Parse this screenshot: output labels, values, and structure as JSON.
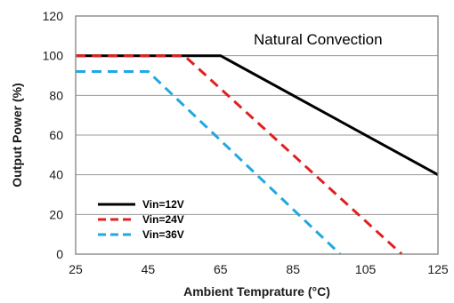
{
  "chart_data": {
    "type": "line",
    "annotation": "Natural Convection",
    "xlabel": "Ambient Temprature (°C)",
    "ylabel": "Output Power (%)",
    "xlim": [
      25,
      125
    ],
    "ylim": [
      0,
      120
    ],
    "x_ticks": [
      "25",
      "45",
      "65",
      "85",
      "105",
      "125"
    ],
    "y_ticks": [
      "0",
      "20",
      "40",
      "60",
      "80",
      "100",
      "120"
    ],
    "grid": "horizontal",
    "legend_position": "bottom-left",
    "series": [
      {
        "name": "Vin=12V",
        "color": "#000000",
        "style": "solid",
        "points": [
          [
            25,
            100
          ],
          [
            65,
            100
          ],
          [
            125,
            40
          ]
        ]
      },
      {
        "name": "Vin=24V",
        "color": "#e02020",
        "style": "dashed",
        "points": [
          [
            25,
            100
          ],
          [
            55,
            100
          ],
          [
            115,
            0
          ]
        ]
      },
      {
        "name": "Vin=36V",
        "color": "#20a8e0",
        "style": "dashed",
        "points": [
          [
            25,
            92
          ],
          [
            45,
            92
          ],
          [
            98,
            0
          ]
        ]
      }
    ]
  }
}
